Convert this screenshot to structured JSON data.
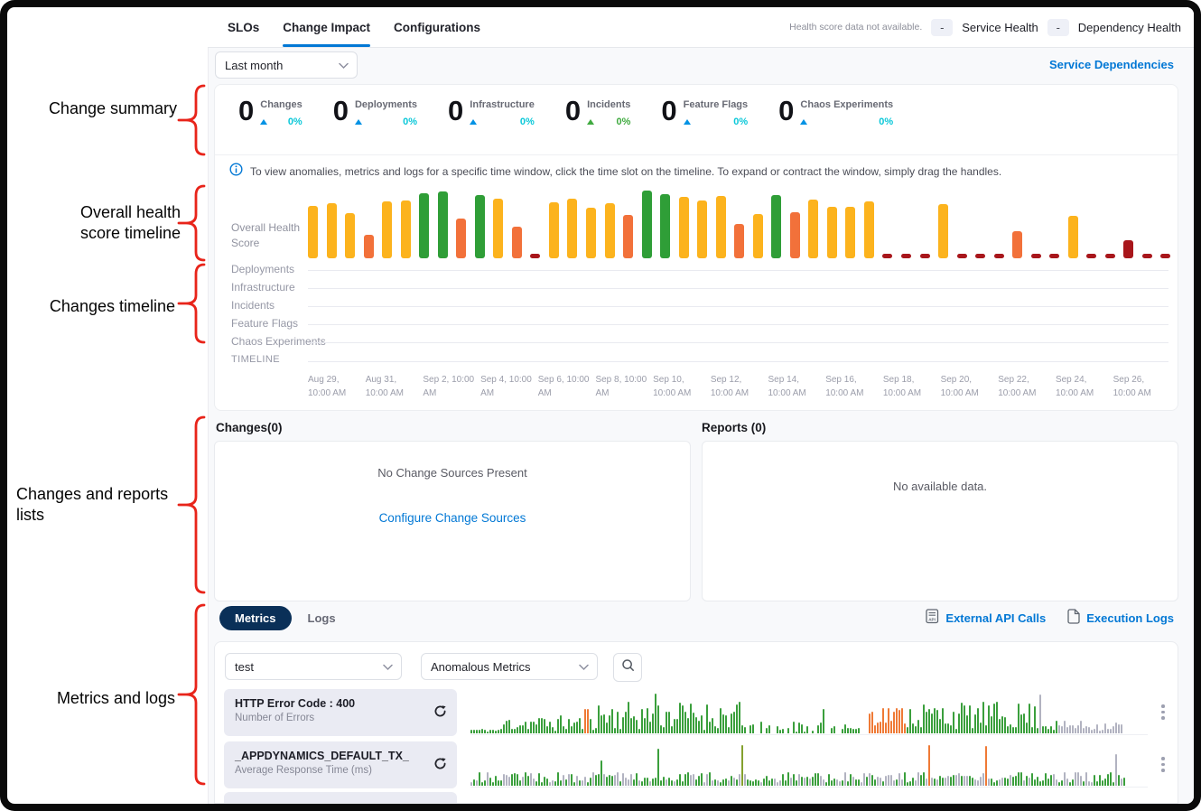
{
  "annotations": {
    "color": "#e8241a",
    "items": [
      {
        "label": "Change summary"
      },
      {
        "label": "Overall health score timeline"
      },
      {
        "label": "Changes timeline"
      },
      {
        "label": "Changes and reports lists"
      },
      {
        "label": "Metrics and logs"
      }
    ]
  },
  "header": {
    "tabs": [
      {
        "label": "SLOs",
        "active": false
      },
      {
        "label": "Change Impact",
        "active": true
      },
      {
        "label": "Configurations",
        "active": false
      }
    ],
    "health_note": "Health score data not available.",
    "service_health": {
      "value": "-",
      "label": "Service Health"
    },
    "dependency_health": {
      "value": "-",
      "label": "Dependency Health"
    }
  },
  "toolbar": {
    "time_range_value": "Last month",
    "service_dependencies_label": "Service Dependencies"
  },
  "summary": {
    "stats": [
      {
        "value": "0",
        "label": "Changes",
        "pct": "0%",
        "trend_color": "#0092e4",
        "pct_color": "#0bc8d9"
      },
      {
        "value": "0",
        "label": "Deployments",
        "pct": "0%",
        "trend_color": "#0092e4",
        "pct_color": "#0bc8d9"
      },
      {
        "value": "0",
        "label": "Infrastructure",
        "pct": "0%",
        "trend_color": "#0092e4",
        "pct_color": "#0bc8d9"
      },
      {
        "value": "0",
        "label": "Incidents",
        "pct": "0%",
        "trend_color": "#3faa3f",
        "pct_color": "#3faa3f"
      },
      {
        "value": "0",
        "label": "Feature Flags",
        "pct": "0%",
        "trend_color": "#0092e4",
        "pct_color": "#0bc8d9"
      },
      {
        "value": "0",
        "label": "Chaos Experiments",
        "pct": "0%",
        "trend_color": "#0092e4",
        "pct_color": "#0bc8d9"
      }
    ]
  },
  "info_banner": {
    "text": "To view anomalies, metrics and logs for a specific time window, click the time slot on the timeline. To expand or contract the window, simply drag the handles."
  },
  "timeline": {
    "health_score_label": "Overall Health Score",
    "rows": [
      "Deployments",
      "Infrastructure",
      "Incidents",
      "Feature Flags",
      "Chaos Experiments"
    ],
    "axis_label": "TIMELINE",
    "dates": [
      "Aug 29, 10:00 AM",
      "Aug 31, 10:00 AM",
      "Sep 2, 10:00 AM",
      "Sep 4, 10:00 AM",
      "Sep 6, 10:00 AM",
      "Sep 8, 10:00 AM",
      "Sep 10, 10:00 AM",
      "Sep 12, 10:00 AM",
      "Sep 14, 10:00 AM",
      "Sep 16, 10:00 AM",
      "Sep 18, 10:00 AM",
      "Sep 20, 10:00 AM",
      "Sep 22, 10:00 AM",
      "Sep 24, 10:00 AM",
      "Sep 26, 10:00 AM"
    ]
  },
  "changes_list": {
    "title": "Changes(0)",
    "empty_text": "No Change Sources Present",
    "link_label": "Configure Change Sources"
  },
  "reports_list": {
    "title": "Reports (0)",
    "empty_text": "No available data."
  },
  "metrics_section": {
    "tabs": [
      {
        "label": "Metrics",
        "active": true
      },
      {
        "label": "Logs",
        "active": false
      }
    ],
    "links": [
      {
        "label": "External API Calls",
        "icon": "api-document-icon"
      },
      {
        "label": "Execution Logs",
        "icon": "document-icon"
      }
    ],
    "service_filter_value": "test",
    "metric_filter_value": "Anomalous Metrics",
    "rows": [
      {
        "title": "HTTP Error Code : 400",
        "subtitle": "Number of Errors"
      },
      {
        "title": "_APPDYNAMICS_DEFAULT_TX_",
        "subtitle": "Average Response Time (ms)"
      }
    ]
  },
  "chart_data": [
    {
      "type": "bar",
      "title": "Overall Health Score",
      "x_axis_label": "TIMELINE",
      "x_start": "Aug 29, 10:00 AM",
      "x_end": "Sep 26, 10:00 AM",
      "ylim": [
        0,
        100
      ],
      "palette": {
        "amber": "#fcb31d",
        "green": "#2f9e37",
        "orange": "#f2713a",
        "red": "#a8161b"
      },
      "bars": [
        {
          "color": "amber",
          "score": 77
        },
        {
          "color": "amber",
          "score": 81
        },
        {
          "color": "amber",
          "score": 67
        },
        {
          "color": "orange",
          "score": 35
        },
        {
          "color": "amber",
          "score": 84
        },
        {
          "color": "amber",
          "score": 85
        },
        {
          "color": "green",
          "score": 96
        },
        {
          "color": "green",
          "score": 99
        },
        {
          "color": "orange",
          "score": 59
        },
        {
          "color": "green",
          "score": 93
        },
        {
          "color": "amber",
          "score": 88
        },
        {
          "color": "orange",
          "score": 47
        },
        {
          "color": "red",
          "score": 7
        },
        {
          "color": "amber",
          "score": 83
        },
        {
          "color": "amber",
          "score": 88
        },
        {
          "color": "amber",
          "score": 75
        },
        {
          "color": "amber",
          "score": 81
        },
        {
          "color": "orange",
          "score": 64
        },
        {
          "color": "green",
          "score": 100
        },
        {
          "color": "green",
          "score": 95
        },
        {
          "color": "amber",
          "score": 91
        },
        {
          "color": "amber",
          "score": 85
        },
        {
          "color": "amber",
          "score": 92
        },
        {
          "color": "orange",
          "score": 51
        },
        {
          "color": "amber",
          "score": 65
        },
        {
          "color": "green",
          "score": 93
        },
        {
          "color": "orange",
          "score": 68
        },
        {
          "color": "amber",
          "score": 87
        },
        {
          "color": "amber",
          "score": 76
        },
        {
          "color": "amber",
          "score": 76
        },
        {
          "color": "amber",
          "score": 84
        },
        {
          "color": "red",
          "score": 7
        },
        {
          "color": "red",
          "score": 7
        },
        {
          "color": "red",
          "score": 7
        },
        {
          "color": "amber",
          "score": 80
        },
        {
          "color": "red",
          "score": 7
        },
        {
          "color": "red",
          "score": 7
        },
        {
          "color": "red",
          "score": 7
        },
        {
          "color": "orange",
          "score": 40
        },
        {
          "color": "red",
          "score": 7
        },
        {
          "color": "red",
          "score": 7
        },
        {
          "color": "amber",
          "score": 63
        },
        {
          "color": "red",
          "score": 7
        },
        {
          "color": "red",
          "score": 7
        },
        {
          "color": "red",
          "score": 27
        },
        {
          "color": "red",
          "score": 7
        },
        {
          "color": "red",
          "score": 7
        }
      ]
    },
    {
      "type": "bar",
      "title": "HTTP Error Code : 400 - Number of Errors sparkline",
      "palette": {
        "green": "#3a9f3c",
        "orange": "#ef7a36",
        "gray": "#b2b3c1",
        "olive": "#84a12e"
      },
      "seed": 11,
      "bar_count": 250,
      "segments": [
        {
          "from": 0.0,
          "to": 0.05,
          "color": "green",
          "min": 0.04,
          "max": 0.12
        },
        {
          "from": 0.05,
          "to": 0.17,
          "color": "green",
          "min": 0.05,
          "max": 0.45
        },
        {
          "from": 0.17,
          "to": 0.178,
          "color": "orange",
          "min": 0.5,
          "max": 0.62
        },
        {
          "from": 0.178,
          "to": 0.4,
          "color": "green",
          "min": 0.08,
          "max": 0.8
        },
        {
          "from": 0.4,
          "to": 0.575,
          "color": "green",
          "min": 0.04,
          "max": 0.3,
          "skip": 0.35
        },
        {
          "from": 0.59,
          "to": 0.645,
          "color": "orange",
          "min": 0.2,
          "max": 0.72
        },
        {
          "from": 0.645,
          "to": 0.835,
          "color": "green",
          "min": 0.1,
          "max": 0.78
        },
        {
          "from": 0.835,
          "to": 0.87,
          "color": "green",
          "min": 0.06,
          "max": 0.35
        },
        {
          "from": 0.87,
          "to": 0.965,
          "color": "gray",
          "min": 0.06,
          "max": 0.32
        }
      ],
      "spikes": [
        {
          "at": 0.27,
          "h": 0.97,
          "color": "green"
        },
        {
          "at": 0.52,
          "h": 0.6,
          "color": "green"
        },
        {
          "at": 0.838,
          "h": 0.95,
          "color": "gray"
        }
      ]
    },
    {
      "type": "bar",
      "title": "_APPDYNAMICS_DEFAULT_TX_ - Average Response Time (ms) sparkline",
      "palette": {
        "green": "#3a9f3c",
        "orange": "#ef7a36",
        "gray": "#b2b3c1",
        "olive": "#84a12e"
      },
      "seed": 23,
      "bar_count": 250,
      "segments": [
        {
          "from": 0.0,
          "to": 0.97,
          "color": "green",
          "alt_color": "gray",
          "alt_prob": 0.42,
          "min": 0.08,
          "max": 0.34
        }
      ],
      "spikes": [
        {
          "at": 0.19,
          "h": 0.62,
          "color": "green"
        },
        {
          "at": 0.275,
          "h": 0.9,
          "color": "green"
        },
        {
          "at": 0.4,
          "h": 1.0,
          "color": "olive"
        },
        {
          "at": 0.675,
          "h": 1.0,
          "color": "orange"
        },
        {
          "at": 0.76,
          "h": 0.97,
          "color": "orange"
        },
        {
          "at": 0.95,
          "h": 0.78,
          "color": "gray"
        }
      ]
    }
  ]
}
